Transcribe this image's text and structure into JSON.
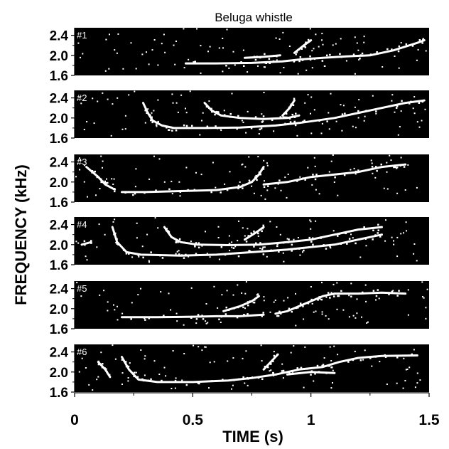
{
  "chart_data": {
    "type": "spectrogram",
    "title": "Beluga whistle",
    "xlabel": "TIME (s)",
    "ylabel": "FREQUENCY (kHz)",
    "xlim": [
      0,
      1.5
    ],
    "ylim": [
      1.6,
      2.55
    ],
    "x_ticks": [
      "0",
      "0.5",
      "1",
      "1.5"
    ],
    "y_ticks": [
      "1.6",
      "2.0",
      "2.4"
    ],
    "grid": false,
    "colors": {
      "background": "#000000",
      "trace": "#ffffff",
      "axes": "#000000"
    },
    "panels": [
      {
        "label": "#1",
        "tracks": [
          [
            [
              0.47,
              1.84
            ],
            [
              0.6,
              1.84
            ],
            [
              0.75,
              1.85
            ],
            [
              0.88,
              1.88
            ],
            [
              0.96,
              1.92
            ],
            [
              1.05,
              1.95
            ],
            [
              1.15,
              1.98
            ],
            [
              1.25,
              2.0
            ],
            [
              1.35,
              2.1
            ],
            [
              1.45,
              2.25
            ],
            [
              1.48,
              2.3
            ]
          ],
          [
            [
              0.93,
              2.05
            ],
            [
              0.97,
              2.2
            ],
            [
              1.0,
              2.3
            ]
          ],
          [
            [
              0.72,
              1.95
            ],
            [
              0.8,
              1.97
            ],
            [
              0.87,
              2.0
            ]
          ]
        ]
      },
      {
        "label": "#2",
        "tracks": [
          [
            [
              0.29,
              2.3
            ],
            [
              0.31,
              2.1
            ],
            [
              0.33,
              1.95
            ],
            [
              0.37,
              1.85
            ],
            [
              0.42,
              1.8
            ],
            [
              0.55,
              1.8
            ],
            [
              0.7,
              1.81
            ],
            [
              0.85,
              1.85
            ],
            [
              0.95,
              1.9
            ],
            [
              1.1,
              2.0
            ],
            [
              1.25,
              2.15
            ],
            [
              1.4,
              2.3
            ],
            [
              1.48,
              2.35
            ]
          ],
          [
            [
              0.55,
              2.3
            ],
            [
              0.58,
              2.15
            ],
            [
              0.62,
              2.05
            ],
            [
              0.7,
              2.0
            ],
            [
              0.8,
              1.98
            ],
            [
              0.9,
              2.0
            ],
            [
              0.95,
              2.05
            ]
          ],
          [
            [
              0.88,
              2.05
            ],
            [
              0.91,
              2.2
            ],
            [
              0.93,
              2.35
            ]
          ]
        ]
      },
      {
        "label": "#3",
        "tracks": [
          [
            [
              0.2,
              1.8
            ],
            [
              0.3,
              1.8
            ],
            [
              0.45,
              1.82
            ],
            [
              0.6,
              1.84
            ],
            [
              0.7,
              1.9
            ],
            [
              0.75,
              2.0
            ],
            [
              0.78,
              2.15
            ],
            [
              0.8,
              2.3
            ]
          ],
          [
            [
              0.8,
              1.95
            ],
            [
              0.9,
              2.0
            ],
            [
              1.0,
              2.1
            ],
            [
              1.1,
              2.15
            ],
            [
              1.2,
              2.2
            ],
            [
              1.3,
              2.3
            ],
            [
              1.4,
              2.35
            ]
          ],
          [
            [
              0.05,
              2.3
            ],
            [
              0.1,
              2.1
            ],
            [
              0.13,
              1.95
            ],
            [
              0.17,
              1.85
            ]
          ]
        ]
      },
      {
        "label": "#4",
        "tracks": [
          [
            [
              0.16,
              2.35
            ],
            [
              0.18,
              2.05
            ],
            [
              0.22,
              1.85
            ],
            [
              0.28,
              1.8
            ],
            [
              0.45,
              1.78
            ],
            [
              0.6,
              1.8
            ],
            [
              0.75,
              1.85
            ],
            [
              0.9,
              1.9
            ],
            [
              1.0,
              1.95
            ],
            [
              1.1,
              2.0
            ],
            [
              1.2,
              2.1
            ],
            [
              1.3,
              2.2
            ]
          ],
          [
            [
              0.38,
              2.35
            ],
            [
              0.41,
              2.15
            ],
            [
              0.45,
              2.05
            ],
            [
              0.52,
              2.0
            ],
            [
              0.65,
              1.99
            ],
            [
              0.78,
              2.0
            ],
            [
              0.9,
              2.05
            ],
            [
              1.0,
              2.1
            ],
            [
              1.1,
              2.2
            ],
            [
              1.2,
              2.3
            ],
            [
              1.3,
              2.35
            ]
          ],
          [
            [
              0.72,
              2.1
            ],
            [
              0.77,
              2.25
            ],
            [
              0.8,
              2.35
            ]
          ],
          [
            [
              0.03,
              2.0
            ],
            [
              0.07,
              2.05
            ]
          ]
        ]
      },
      {
        "label": "#5",
        "tracks": [
          [
            [
              0.2,
              1.83
            ],
            [
              0.35,
              1.83
            ],
            [
              0.5,
              1.84
            ],
            [
              0.6,
              1.85
            ],
            [
              0.7,
              1.85
            ],
            [
              0.8,
              1.88
            ]
          ],
          [
            [
              0.85,
              1.9
            ],
            [
              0.9,
              1.95
            ],
            [
              0.95,
              2.05
            ],
            [
              1.0,
              2.15
            ],
            [
              1.05,
              2.25
            ],
            [
              1.1,
              2.3
            ],
            [
              1.2,
              2.3
            ],
            [
              1.3,
              2.32
            ],
            [
              1.4,
              2.3
            ]
          ],
          [
            [
              0.63,
              1.95
            ],
            [
              0.7,
              2.05
            ],
            [
              0.75,
              2.15
            ],
            [
              0.78,
              2.25
            ]
          ]
        ]
      },
      {
        "label": "#6",
        "tracks": [
          [
            [
              0.2,
              2.3
            ],
            [
              0.23,
              2.05
            ],
            [
              0.27,
              1.85
            ],
            [
              0.35,
              1.8
            ],
            [
              0.5,
              1.8
            ],
            [
              0.65,
              1.83
            ],
            [
              0.75,
              1.88
            ],
            [
              0.85,
              1.95
            ],
            [
              0.95,
              2.05
            ],
            [
              1.05,
              2.1
            ],
            [
              1.12,
              2.2
            ],
            [
              1.2,
              2.28
            ],
            [
              1.3,
              2.32
            ],
            [
              1.45,
              2.33
            ]
          ],
          [
            [
              0.8,
              2.05
            ],
            [
              0.83,
              2.2
            ],
            [
              0.86,
              2.35
            ]
          ],
          [
            [
              0.1,
              2.2
            ],
            [
              0.13,
              2.05
            ],
            [
              0.15,
              1.9
            ]
          ],
          [
            [
              0.9,
              1.95
            ],
            [
              1.0,
              2.0
            ],
            [
              1.1,
              1.98
            ]
          ]
        ]
      }
    ]
  }
}
